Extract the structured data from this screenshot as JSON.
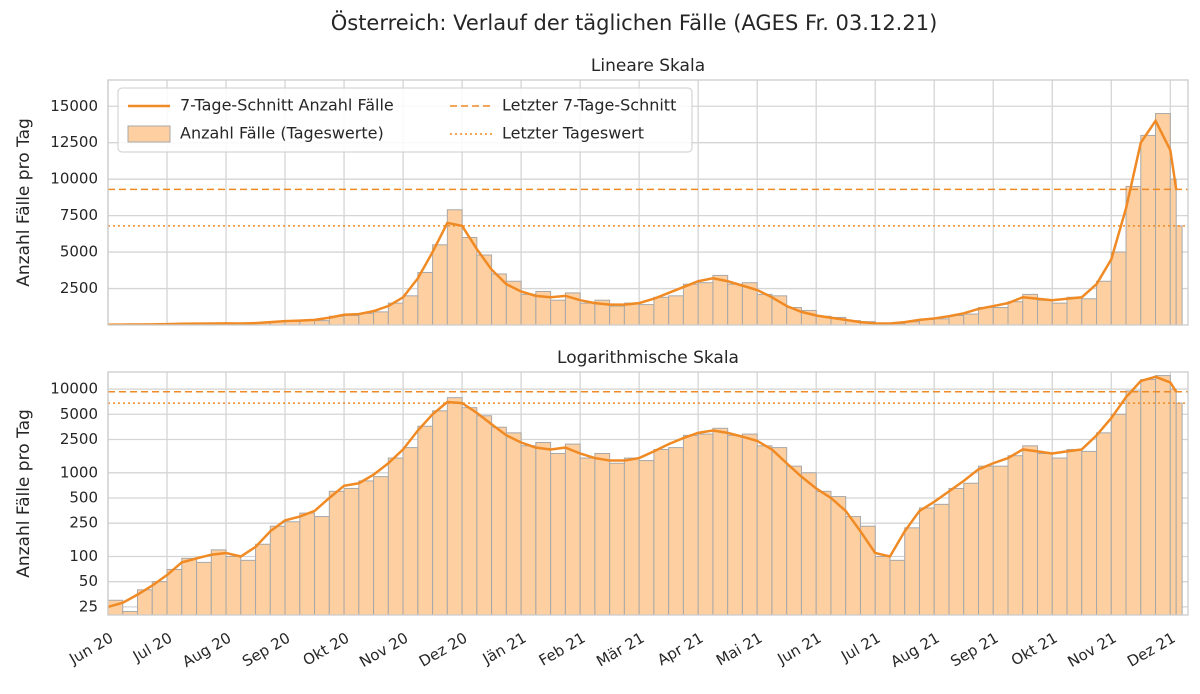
{
  "title": "Österreich: Verlauf der täglichen Fälle (AGES Fr. 03.12.21)",
  "chart_data": [
    {
      "type": "line",
      "title": "Lineare Skala",
      "ylabel": "Anzahl Fälle pro Tag",
      "yscale": "linear",
      "grid": true,
      "legend": "upper left",
      "xlim": [
        0,
        18.3
      ],
      "xticks": [
        0,
        1,
        2,
        3,
        4,
        5,
        6,
        7,
        8,
        9,
        10,
        11,
        12,
        13,
        14,
        15,
        16,
        17,
        18
      ],
      "ylim": [
        0,
        16800
      ],
      "yticks": [
        2500,
        5000,
        7500,
        10000,
        12500,
        15000
      ],
      "x": [
        0,
        0.25,
        0.5,
        0.75,
        1,
        1.25,
        1.5,
        1.75,
        2,
        2.25,
        2.5,
        2.75,
        3,
        3.25,
        3.5,
        3.75,
        4,
        4.25,
        4.5,
        4.75,
        5,
        5.25,
        5.5,
        5.75,
        6,
        6.25,
        6.5,
        6.75,
        7,
        7.25,
        7.5,
        7.75,
        8,
        8.25,
        8.5,
        8.75,
        9,
        9.25,
        9.5,
        9.75,
        10,
        10.25,
        10.5,
        10.75,
        11,
        11.25,
        11.5,
        11.75,
        12,
        12.25,
        12.5,
        12.75,
        13,
        13.25,
        13.5,
        13.75,
        14,
        14.25,
        14.5,
        14.75,
        15,
        15.25,
        15.5,
        15.75,
        16,
        16.25,
        16.5,
        16.75,
        17,
        17.25,
        17.5,
        17.75,
        18,
        18.1
      ],
      "series": [
        {
          "name": "Anzahl Fälle (Tageswerte)",
          "style": "bar",
          "color": "#fdcfa1",
          "values": [
            30,
            22,
            40,
            50,
            70,
            95,
            85,
            120,
            100,
            90,
            140,
            230,
            260,
            330,
            300,
            600,
            650,
            800,
            900,
            1500,
            2000,
            3600,
            5500,
            7900,
            6000,
            4800,
            3500,
            3000,
            2100,
            2300,
            1700,
            2200,
            1500,
            1700,
            1300,
            1500,
            1400,
            1900,
            2000,
            2800,
            2900,
            3400,
            2800,
            2900,
            2100,
            2000,
            1200,
            1000,
            600,
            520,
            300,
            230,
            100,
            90,
            220,
            380,
            420,
            650,
            750,
            1200,
            1200,
            1600,
            2100,
            1700,
            1500,
            1900,
            1800,
            3000,
            5000,
            9500,
            13000,
            14500,
            10000,
            6800
          ]
        },
        {
          "name": "7-Tage-Schnitt Anzahl Fälle",
          "style": "line",
          "color": "#f08a24",
          "values": [
            25,
            28,
            35,
            45,
            60,
            85,
            95,
            105,
            110,
            100,
            130,
            200,
            270,
            300,
            350,
            500,
            700,
            750,
            950,
            1300,
            1900,
            3200,
            5000,
            7000,
            6800,
            5200,
            3800,
            2800,
            2300,
            2000,
            1900,
            2000,
            1700,
            1500,
            1400,
            1400,
            1500,
            1800,
            2200,
            2600,
            3000,
            3200,
            3000,
            2700,
            2400,
            1900,
            1300,
            900,
            650,
            500,
            350,
            200,
            110,
            100,
            200,
            350,
            450,
            600,
            800,
            1100,
            1300,
            1500,
            1900,
            1800,
            1700,
            1800,
            1900,
            2800,
            4500,
            8000,
            12500,
            14000,
            12000,
            9300
          ]
        }
      ],
      "hlines": [
        {
          "name": "Letzter 7-Tage-Schnitt",
          "value": 9300,
          "style": "dashed",
          "color": "#f08a24"
        },
        {
          "name": "Letzter Tageswert",
          "value": 6800,
          "style": "dotted",
          "color": "#f08a24"
        }
      ]
    },
    {
      "type": "line",
      "title": "Logarithmische Skala",
      "ylabel": "Anzahl Fälle pro Tag",
      "yscale": "log",
      "grid": true,
      "xlim": [
        0,
        18.3
      ],
      "xticks": [
        {
          "value": 0,
          "label": "Jun 20"
        },
        {
          "value": 1,
          "label": "Jul 20"
        },
        {
          "value": 2,
          "label": "Aug 20"
        },
        {
          "value": 3,
          "label": "Sep 20"
        },
        {
          "value": 4,
          "label": "Okt 20"
        },
        {
          "value": 5,
          "label": "Nov 20"
        },
        {
          "value": 6,
          "label": "Dez 20"
        },
        {
          "value": 7,
          "label": "Jän 21"
        },
        {
          "value": 8,
          "label": "Feb 21"
        },
        {
          "value": 9,
          "label": "Mär 21"
        },
        {
          "value": 10,
          "label": "Apr 21"
        },
        {
          "value": 11,
          "label": "Mai 21"
        },
        {
          "value": 12,
          "label": "Jun 21"
        },
        {
          "value": 13,
          "label": "Jul 21"
        },
        {
          "value": 14,
          "label": "Aug 21"
        },
        {
          "value": 15,
          "label": "Sep 21"
        },
        {
          "value": 16,
          "label": "Okt 21"
        },
        {
          "value": 17,
          "label": "Nov 21"
        },
        {
          "value": 18,
          "label": "Dez 21"
        }
      ],
      "ylim": [
        20,
        16000
      ],
      "yticks": [
        25,
        50,
        100,
        250,
        500,
        1000,
        2500,
        5000,
        10000
      ],
      "x": [
        0,
        0.25,
        0.5,
        0.75,
        1,
        1.25,
        1.5,
        1.75,
        2,
        2.25,
        2.5,
        2.75,
        3,
        3.25,
        3.5,
        3.75,
        4,
        4.25,
        4.5,
        4.75,
        5,
        5.25,
        5.5,
        5.75,
        6,
        6.25,
        6.5,
        6.75,
        7,
        7.25,
        7.5,
        7.75,
        8,
        8.25,
        8.5,
        8.75,
        9,
        9.25,
        9.5,
        9.75,
        10,
        10.25,
        10.5,
        10.75,
        11,
        11.25,
        11.5,
        11.75,
        12,
        12.25,
        12.5,
        12.75,
        13,
        13.25,
        13.5,
        13.75,
        14,
        14.25,
        14.5,
        14.75,
        15,
        15.25,
        15.5,
        15.75,
        16,
        16.25,
        16.5,
        16.75,
        17,
        17.25,
        17.5,
        17.75,
        18,
        18.1
      ],
      "series": [
        {
          "style": "bar",
          "color": "#fdcfa1",
          "values": [
            30,
            22,
            40,
            50,
            70,
            95,
            85,
            120,
            100,
            90,
            140,
            230,
            260,
            330,
            300,
            600,
            650,
            800,
            900,
            1500,
            2000,
            3600,
            5500,
            7900,
            6000,
            4800,
            3500,
            3000,
            2100,
            2300,
            1700,
            2200,
            1500,
            1700,
            1300,
            1500,
            1400,
            1900,
            2000,
            2800,
            2900,
            3400,
            2800,
            2900,
            2100,
            2000,
            1200,
            1000,
            600,
            520,
            300,
            230,
            100,
            90,
            220,
            380,
            420,
            650,
            750,
            1200,
            1200,
            1600,
            2100,
            1700,
            1500,
            1900,
            1800,
            3000,
            5000,
            9500,
            13000,
            14500,
            10000,
            6800
          ]
        },
        {
          "style": "line",
          "color": "#f08a24",
          "values": [
            25,
            28,
            35,
            45,
            60,
            85,
            95,
            105,
            110,
            100,
            130,
            200,
            270,
            300,
            350,
            500,
            700,
            750,
            950,
            1300,
            1900,
            3200,
            5000,
            7000,
            6800,
            5200,
            3800,
            2800,
            2300,
            2000,
            1900,
            2000,
            1700,
            1500,
            1400,
            1400,
            1500,
            1800,
            2200,
            2600,
            3000,
            3200,
            3000,
            2700,
            2400,
            1900,
            1300,
            900,
            650,
            500,
            350,
            200,
            110,
            100,
            200,
            350,
            450,
            600,
            800,
            1100,
            1300,
            1500,
            1900,
            1800,
            1700,
            1800,
            1900,
            2800,
            4500,
            8000,
            12500,
            14000,
            12000,
            9300
          ]
        }
      ],
      "hlines": [
        {
          "value": 9300,
          "style": "dashed",
          "color": "#f08a24"
        },
        {
          "value": 6800,
          "style": "dotted",
          "color": "#f08a24"
        }
      ]
    }
  ]
}
